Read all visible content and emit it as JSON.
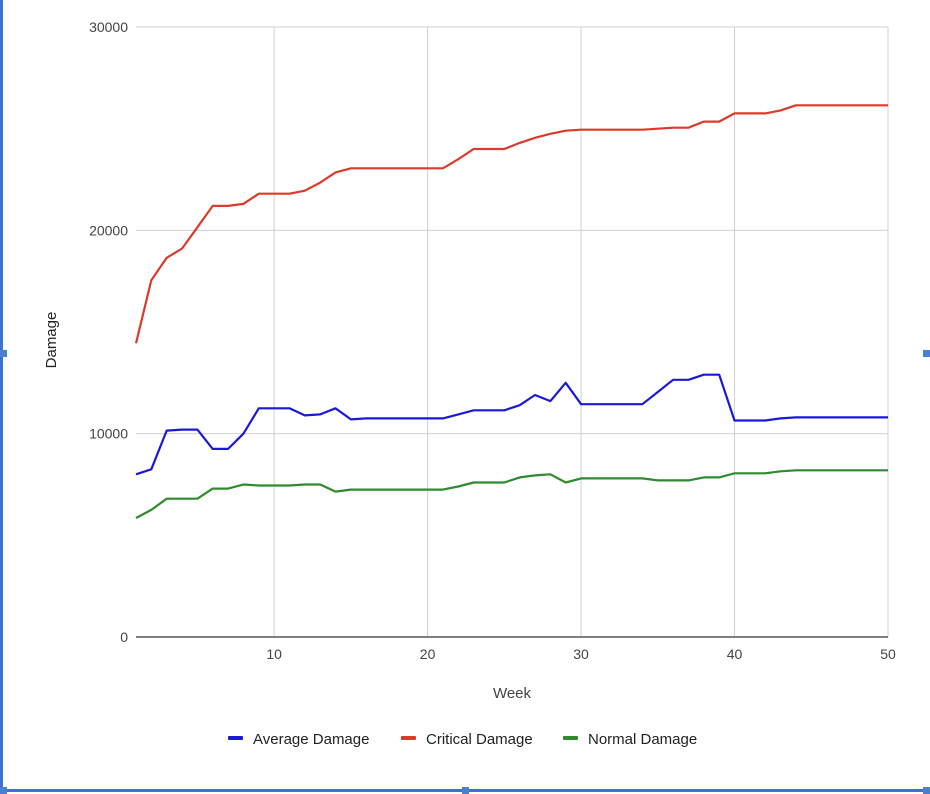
{
  "chart_data": {
    "type": "line",
    "xlabel": "Week",
    "ylabel": "Damage",
    "xlim": [
      1,
      50
    ],
    "ylim": [
      0,
      30000
    ],
    "x_ticks": [
      10,
      20,
      30,
      40,
      50
    ],
    "y_ticks": [
      0,
      10000,
      20000,
      30000
    ],
    "grid": true,
    "legend": "bottom",
    "x": [
      1,
      2,
      3,
      4,
      5,
      6,
      7,
      8,
      9,
      10,
      11,
      12,
      13,
      14,
      15,
      16,
      17,
      18,
      19,
      20,
      21,
      22,
      23,
      24,
      25,
      26,
      27,
      28,
      29,
      30,
      31,
      32,
      33,
      34,
      35,
      36,
      37,
      38,
      39,
      40,
      41,
      42,
      43,
      44,
      45,
      46,
      47,
      48,
      49,
      50
    ],
    "series": [
      {
        "name": "Average Damage",
        "color": "#1a1ad6",
        "values": [
          8000,
          8250,
          10150,
          10200,
          10200,
          9250,
          9250,
          10000,
          11250,
          11250,
          11250,
          10900,
          10950,
          11250,
          10700,
          10750,
          10750,
          10750,
          10750,
          10750,
          10750,
          10950,
          11150,
          11150,
          11150,
          11400,
          11900,
          11600,
          12500,
          11450,
          11450,
          11450,
          11450,
          11450,
          12050,
          12650,
          12650,
          12900,
          12900,
          10650,
          10650,
          10650,
          10750,
          10800,
          10800,
          10800,
          10800,
          10800,
          10800,
          10800
        ]
      },
      {
        "name": "Critical Damage",
        "color": "#db3b2a",
        "values": [
          14450,
          17550,
          18650,
          19100,
          20150,
          21200,
          21200,
          21300,
          21800,
          21800,
          21800,
          21950,
          22350,
          22850,
          23050,
          23050,
          23050,
          23050,
          23050,
          23050,
          23050,
          23500,
          24000,
          24000,
          24000,
          24300,
          24550,
          24750,
          24900,
          24950,
          24950,
          24950,
          24950,
          24950,
          25000,
          25050,
          25050,
          25350,
          25350,
          25750,
          25750,
          25750,
          25900,
          26150,
          26150,
          26150,
          26150,
          26150,
          26150,
          26150
        ]
      },
      {
        "name": "Normal Damage",
        "color": "#2e8b2e",
        "values": [
          5850,
          6250,
          6800,
          6800,
          6800,
          7300,
          7300,
          7500,
          7450,
          7450,
          7450,
          7500,
          7500,
          7150,
          7250,
          7250,
          7250,
          7250,
          7250,
          7250,
          7250,
          7400,
          7600,
          7600,
          7600,
          7850,
          7950,
          8000,
          7600,
          7800,
          7800,
          7800,
          7800,
          7800,
          7700,
          7700,
          7700,
          7850,
          7850,
          8050,
          8050,
          8050,
          8150,
          8200,
          8200,
          8200,
          8200,
          8200,
          8200,
          8200
        ]
      }
    ]
  }
}
